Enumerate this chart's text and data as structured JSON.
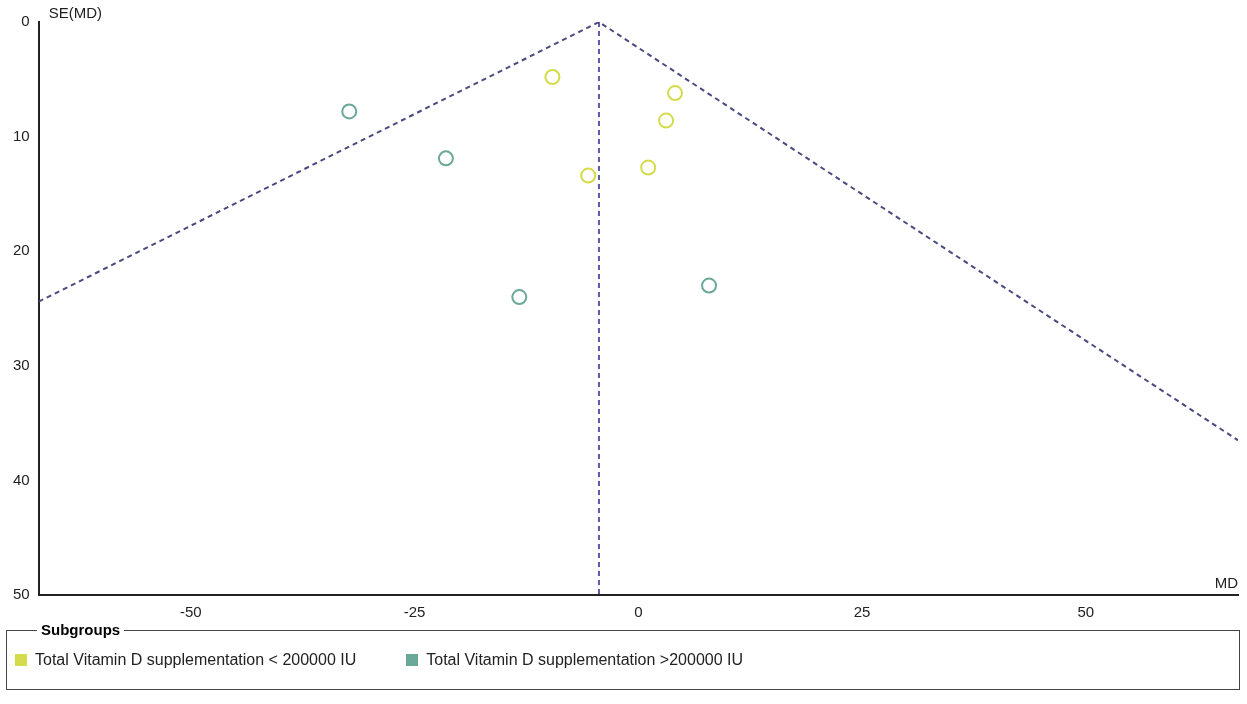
{
  "chart_data": {
    "type": "scatter",
    "xlabel": "MD",
    "ylabel": "SE(MD)",
    "legend_title": "Subgroups",
    "legend": "bottom",
    "marker": "circle",
    "grid": false,
    "xlim": [
      -67,
      67
    ],
    "xticks": [
      -50,
      -25,
      0,
      25,
      50
    ],
    "ylim": [
      50,
      0
    ],
    "yticks": [
      0,
      10,
      20,
      30,
      40,
      50
    ],
    "ref_lines": [
      {
        "axis": "x",
        "value": -4.4,
        "color": "#5a5aa8",
        "line_style": "dashed"
      }
    ],
    "series": [
      {
        "name": "Total Vitamin D supplementation < 200000 IU",
        "color": "#d4dc4c",
        "x": [
          -9.6,
          4.1,
          3.1,
          -5.6,
          1.1
        ],
        "values": [
          4.8,
          6.2,
          8.6,
          13.4,
          12.7
        ]
      },
      {
        "name": "Total Vitamin D supplementation >200000 IU",
        "color": "#6aa89a",
        "x": [
          -32.3,
          -21.5,
          -13.3,
          7.9
        ],
        "values": [
          7.8,
          11.9,
          24.0,
          23.0
        ]
      },
      {
        "type": "line",
        "color": "#4a4a80",
        "line_style": "dashed",
        "marker": "none",
        "x": [
          -67,
          -4.4,
          67
        ],
        "values": [
          24.4,
          0,
          36.5
        ]
      }
    ]
  }
}
